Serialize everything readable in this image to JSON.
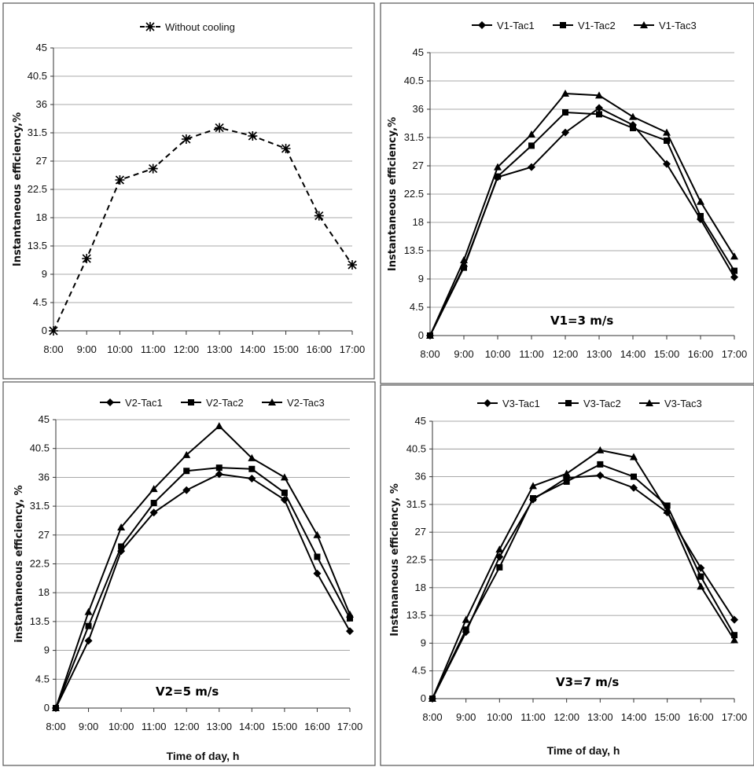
{
  "chart_data": [
    {
      "type": "line",
      "ylabel": "Instantaneous efficiency,%",
      "xlabel": "",
      "annotation": "",
      "categories": [
        "8:00",
        "9:00",
        "10:00",
        "11:00",
        "12:00",
        "13:00",
        "14:00",
        "15:00",
        "16:00",
        "17:00"
      ],
      "yticks": [
        "0",
        "4.5",
        "9",
        "13.5",
        "18",
        "22.5",
        "27",
        "31.5",
        "36",
        "40.5",
        "45"
      ],
      "ylim": [
        0,
        45
      ],
      "grid": true,
      "legend_position": "top",
      "series": [
        {
          "name": "Without cooling",
          "marker": "star",
          "style": "dashed",
          "values": [
            0,
            11.5,
            24,
            25.8,
            30.5,
            32.3,
            31,
            29,
            18.3,
            10.5
          ]
        }
      ]
    },
    {
      "type": "line",
      "ylabel": "Instantaneous efficiency,%",
      "xlabel": "",
      "annotation": "V1=3 m/s",
      "categories": [
        "8:00",
        "9:00",
        "10:00",
        "11:00",
        "12:00",
        "13:00",
        "14:00",
        "15:00",
        "16:00",
        "17:00"
      ],
      "yticks": [
        "0",
        "4.5",
        "9",
        "13.5",
        "18",
        "22.5",
        "27",
        "31.5",
        "36",
        "40.5",
        "45"
      ],
      "ylim": [
        0,
        45
      ],
      "grid": true,
      "legend_position": "top",
      "series": [
        {
          "name": "V1-Tac1",
          "marker": "diamond",
          "style": "solid",
          "values": [
            0,
            11,
            25.2,
            26.8,
            32.3,
            36.2,
            33.5,
            27.3,
            18.5,
            9.3
          ]
        },
        {
          "name": "V1-Tac2",
          "marker": "square",
          "style": "solid",
          "values": [
            0,
            10.8,
            25.3,
            30.2,
            35.5,
            35.2,
            33,
            31,
            19,
            10.3
          ]
        },
        {
          "name": "V1-Tac3",
          "marker": "triangle",
          "style": "solid",
          "values": [
            0,
            12,
            26.8,
            32,
            38.5,
            38.2,
            34.8,
            32.3,
            21.3,
            12.6
          ]
        }
      ]
    },
    {
      "type": "line",
      "ylabel": "instantaneous efficiency, %",
      "xlabel": "Time of day, h",
      "annotation": "V2=5 m/s",
      "categories": [
        "8:00",
        "9:00",
        "10:00",
        "11:00",
        "12:00",
        "13:00",
        "14:00",
        "15:00",
        "16:00",
        "17:00"
      ],
      "yticks": [
        "0",
        "4.5",
        "9",
        "13.5",
        "18",
        "22.5",
        "27",
        "31.5",
        "36",
        "40.5",
        "45"
      ],
      "ylim": [
        0,
        45
      ],
      "grid": true,
      "legend_position": "top",
      "series": [
        {
          "name": "V2-Tac1",
          "marker": "diamond",
          "style": "solid",
          "values": [
            0,
            10.5,
            24.5,
            30.5,
            34,
            36.5,
            35.8,
            32.5,
            21,
            12
          ]
        },
        {
          "name": "V2-Tac2",
          "marker": "square",
          "style": "solid",
          "values": [
            0,
            12.8,
            25.2,
            32,
            37,
            37.5,
            37.3,
            33.6,
            23.6,
            14
          ]
        },
        {
          "name": "V2-Tac3",
          "marker": "triangle",
          "style": "solid",
          "values": [
            0,
            15,
            28.2,
            34.2,
            39.5,
            44,
            39,
            36,
            27,
            14.6
          ]
        }
      ]
    },
    {
      "type": "line",
      "ylabel": "Instananeous efficiency, %",
      "xlabel": "Time of day, h",
      "annotation": "V3=7 m/s",
      "categories": [
        "8:00",
        "9:00",
        "10:00",
        "11:00",
        "12:00",
        "13:00",
        "14:00",
        "15:00",
        "16:00",
        "17:00"
      ],
      "yticks": [
        "0",
        "4.5",
        "9",
        "13.5",
        "18",
        "22.5",
        "27",
        "31.5",
        "36",
        "40.5",
        "45"
      ],
      "ylim": [
        0,
        45
      ],
      "grid": true,
      "legend_position": "top",
      "series": [
        {
          "name": "V3-Tac1",
          "marker": "diamond",
          "style": "solid",
          "values": [
            0,
            10.8,
            23,
            32.3,
            35.8,
            36.2,
            34.2,
            30.2,
            21.2,
            12.8
          ]
        },
        {
          "name": "V3-Tac2",
          "marker": "square",
          "style": "solid",
          "values": [
            0,
            11.2,
            21.3,
            32.5,
            35.2,
            38,
            36,
            31.3,
            19.8,
            10.3
          ]
        },
        {
          "name": "V3-Tac3",
          "marker": "triangle",
          "style": "solid",
          "values": [
            0,
            12.8,
            24.2,
            34.5,
            36.5,
            40.3,
            39.2,
            30.5,
            18.2,
            9.5
          ]
        }
      ]
    }
  ]
}
